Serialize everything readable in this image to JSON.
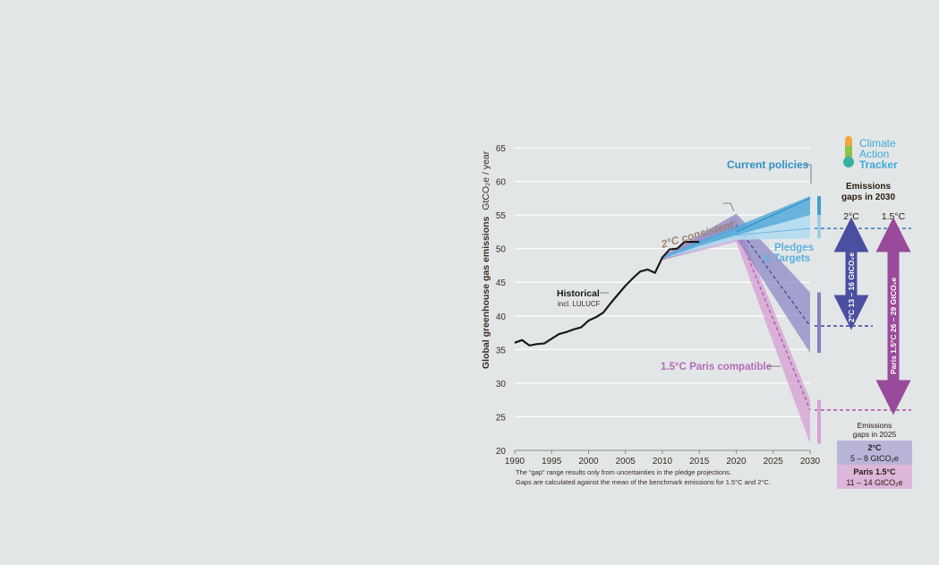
{
  "chart_data": {
    "type": "line",
    "ylabel": "Global greenhouse gas emissions",
    "ylabel_unit": "GtCO₂e / year",
    "ylim": [
      20,
      65
    ],
    "xlim": [
      1990,
      2030
    ],
    "x_ticks": [
      1990,
      1995,
      2000,
      2005,
      2010,
      2015,
      2020,
      2025,
      2030
    ],
    "y_ticks": [
      20,
      25,
      30,
      35,
      40,
      45,
      50,
      55,
      60,
      65
    ],
    "grid": true,
    "historical": {
      "label": "Historical",
      "sublabel": "incl. LULUCF",
      "color": "#1a1a1a",
      "points": [
        [
          1990,
          36.0
        ],
        [
          1991,
          36.4
        ],
        [
          1992,
          35.6
        ],
        [
          1993,
          35.8
        ],
        [
          1994,
          35.9
        ],
        [
          1995,
          36.6
        ],
        [
          1996,
          37.3
        ],
        [
          1997,
          37.6
        ],
        [
          1998,
          38.0
        ],
        [
          1999,
          38.3
        ],
        [
          2000,
          39.3
        ],
        [
          2001,
          39.8
        ],
        [
          2002,
          40.5
        ],
        [
          2003,
          41.9
        ],
        [
          2004,
          43.2
        ],
        [
          2005,
          44.5
        ],
        [
          2006,
          45.6
        ],
        [
          2007,
          46.6
        ],
        [
          2008,
          46.9
        ],
        [
          2009,
          46.4
        ],
        [
          2010,
          48.7
        ],
        [
          2011,
          49.9
        ],
        [
          2012,
          50.0
        ],
        [
          2013,
          51.0
        ],
        [
          2014,
          51.0
        ],
        [
          2015,
          51.0
        ]
      ]
    },
    "scenarios": [
      {
        "name": "Current policies",
        "color": "#3f9fcf",
        "points": [
          [
            2010,
            48.7
          ],
          [
            2020,
            52.5
          ],
          [
            2030,
            57.5
          ]
        ],
        "band": [
          [
            2010,
            48.5,
            48.8
          ],
          [
            2015,
            50.4,
            51.2
          ],
          [
            2020,
            52.0,
            53.3
          ],
          [
            2030,
            55.0,
            57.8
          ]
        ]
      },
      {
        "name": "Pledges & Targets",
        "color": "#8ac6e3",
        "points": [
          [
            2010,
            48.7
          ],
          [
            2020,
            52.0
          ],
          [
            2030,
            53.0
          ]
        ],
        "band": [
          [
            2010,
            48.5,
            48.8
          ],
          [
            2020,
            51.3,
            52.8
          ],
          [
            2030,
            51.5,
            55.0
          ]
        ]
      },
      {
        "name": "2°C consistent",
        "color": "#7b74b6",
        "points": [
          [
            2010,
            48.7
          ],
          [
            2020,
            53.5
          ],
          [
            2030,
            38.5
          ]
        ],
        "band": [
          [
            2010,
            48.3,
            48.9
          ],
          [
            2020,
            51.5,
            55.2
          ],
          [
            2030,
            34.5,
            43.5
          ]
        ]
      },
      {
        "name": "1.5°C Paris compatible",
        "color": "#c17fbe",
        "points": [
          [
            2010,
            48.7
          ],
          [
            2020,
            53.0
          ],
          [
            2030,
            26.0
          ]
        ],
        "band": [
          [
            2010,
            48.3,
            48.9
          ],
          [
            2020,
            51.0,
            54.5
          ],
          [
            2030,
            21.0,
            27.5
          ]
        ]
      }
    ],
    "reference_lines": {
      "pledges_2030": 53.0,
      "twoc_2030": 38.5,
      "onefive_2030": 26.0
    },
    "legend_labels": {
      "current_policies": "Current policies",
      "pledges_line1": "Pledges",
      "pledges_line2": "& Targets",
      "twoc": "2°C consistent",
      "onefive": "1.5°C Paris compatible",
      "historical": "Historical",
      "historical_sub": "incl. LULUCF"
    },
    "gaps_2030": {
      "title_line1": "Emissions",
      "title_line2": "gaps in 2030",
      "twoc_header": "2°C",
      "onefive_header": "1.5°C",
      "twoc_text": "2°C  13 – 16 GtCO₂e",
      "onefive_text": "Paris 1.5°C  26 – 29 GtCO₂e"
    },
    "gaps_2025": {
      "title_line1": "Emissions",
      "title_line2": "gaps in 2025",
      "twoc_title": "2°C",
      "twoc_value": "5 – 8  GtCO₂e",
      "onefive_title": "Paris 1.5°C",
      "onefive_value": "11 – 14  GtCO₂e"
    },
    "footnotes": [
      "The “gap” range results only from uncertainties in the pledge projections.",
      "Gaps are calculated against the mean of the benchmark emissions for 1.5°C and 2°C."
    ]
  },
  "logo": {
    "line1": "Climate",
    "line2": "Action",
    "line3": "Tracker",
    "icon": "thermometer-icon"
  },
  "colors": {
    "background": "#e3e6e7",
    "current": "#3f9fcf",
    "pledges": "#8ac6e3",
    "twoc": "#5a56a6",
    "onefive": "#a45aa5",
    "text": "#3a2a1e"
  }
}
